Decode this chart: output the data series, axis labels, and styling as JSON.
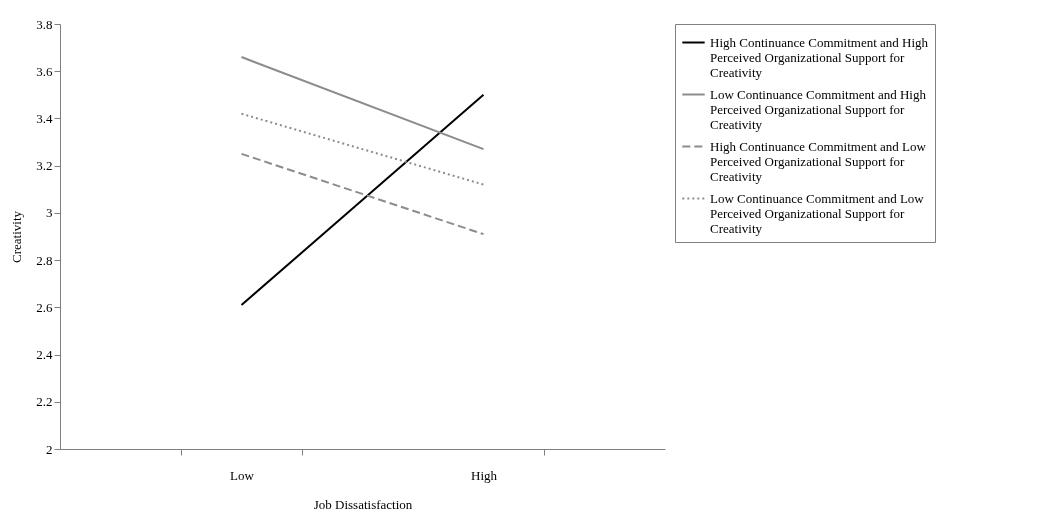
{
  "chart_data": {
    "type": "line",
    "xlabel": "Job Dissatisfaction",
    "ylabel": "Creativity",
    "categories": [
      "Low",
      "High"
    ],
    "ylim": [
      2,
      3.8
    ],
    "yticks": [
      2,
      2.2,
      2.4,
      2.6,
      2.8,
      3,
      3.2,
      3.4,
      3.6,
      3.8
    ],
    "grid": false,
    "legend": "right",
    "marker": "none",
    "series": [
      {
        "name": "High Continuance Commitment and High Perceived Organizational Support for Creativity",
        "color": "#000000",
        "line_style": "solid",
        "values": [
          2.61,
          3.5
        ]
      },
      {
        "name": "Low Continuance Commitment and High Perceived Organizational Support for Creativity",
        "color": "#8c8c8c",
        "line_style": "solid",
        "values": [
          3.66,
          3.27
        ]
      },
      {
        "name": "High Continuance Commitment and Low Perceived Organizational Support for Creativity",
        "color": "#8c8c8c",
        "line_style": "dashed",
        "values": [
          3.25,
          2.91
        ]
      },
      {
        "name": "Low Continuance Commitment and Low Perceived Organizational Support for Creativity",
        "color": "#8c8c8c",
        "line_style": "dotted",
        "values": [
          3.42,
          3.12
        ]
      }
    ]
  }
}
